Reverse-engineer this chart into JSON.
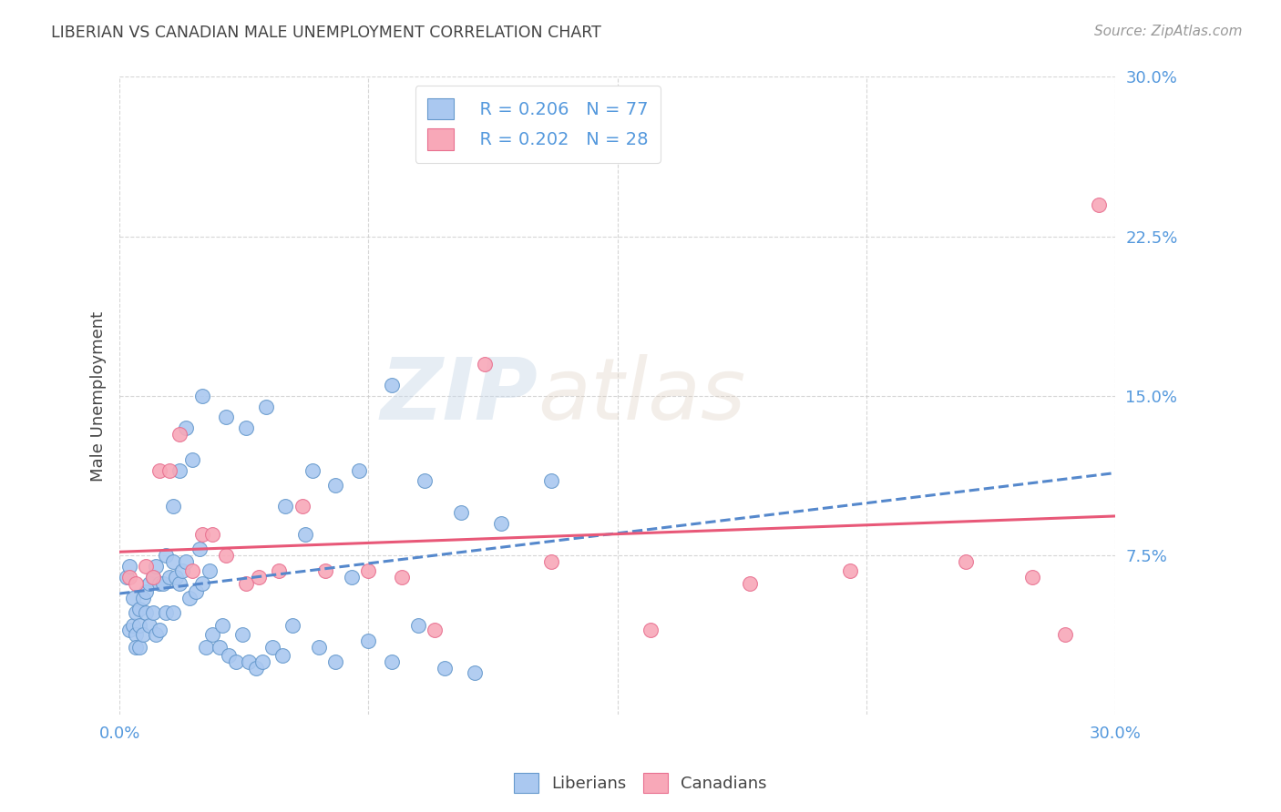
{
  "title": "LIBERIAN VS CANADIAN MALE UNEMPLOYMENT CORRELATION CHART",
  "source": "Source: ZipAtlas.com",
  "ylabel": "Male Unemployment",
  "xlim": [
    0.0,
    0.3
  ],
  "ylim": [
    0.0,
    0.3
  ],
  "watermark_zip": "ZIP",
  "watermark_atlas": "atlas",
  "legend_r1": "R = 0.206",
  "legend_n1": "N = 77",
  "legend_r2": "R = 0.202",
  "legend_n2": "N = 28",
  "liberian_color": "#aac8f0",
  "canadian_color": "#f8a8b8",
  "liberian_edge_color": "#6699cc",
  "canadian_edge_color": "#e87090",
  "liberian_line_color": "#5588cc",
  "canadian_line_color": "#e85878",
  "background_color": "#ffffff",
  "grid_color": "#cccccc",
  "title_color": "#444444",
  "axis_tick_color": "#5599dd",
  "liberian_x": [
    0.002,
    0.003,
    0.003,
    0.004,
    0.004,
    0.005,
    0.005,
    0.005,
    0.006,
    0.006,
    0.006,
    0.007,
    0.007,
    0.008,
    0.008,
    0.009,
    0.009,
    0.01,
    0.01,
    0.011,
    0.011,
    0.012,
    0.012,
    0.013,
    0.014,
    0.014,
    0.015,
    0.016,
    0.016,
    0.017,
    0.018,
    0.018,
    0.019,
    0.02,
    0.021,
    0.022,
    0.023,
    0.024,
    0.025,
    0.026,
    0.027,
    0.028,
    0.03,
    0.031,
    0.033,
    0.035,
    0.037,
    0.039,
    0.041,
    0.043,
    0.046,
    0.049,
    0.052,
    0.056,
    0.06,
    0.065,
    0.07,
    0.075,
    0.082,
    0.09,
    0.098,
    0.107,
    0.016,
    0.02,
    0.025,
    0.032,
    0.038,
    0.044,
    0.05,
    0.058,
    0.065,
    0.072,
    0.082,
    0.092,
    0.103,
    0.115,
    0.13
  ],
  "liberian_y": [
    0.065,
    0.07,
    0.04,
    0.055,
    0.042,
    0.048,
    0.038,
    0.032,
    0.05,
    0.042,
    0.032,
    0.055,
    0.038,
    0.058,
    0.048,
    0.062,
    0.042,
    0.065,
    0.048,
    0.07,
    0.038,
    0.062,
    0.04,
    0.062,
    0.075,
    0.048,
    0.065,
    0.072,
    0.048,
    0.065,
    0.115,
    0.062,
    0.068,
    0.072,
    0.055,
    0.12,
    0.058,
    0.078,
    0.062,
    0.032,
    0.068,
    0.038,
    0.032,
    0.042,
    0.028,
    0.025,
    0.038,
    0.025,
    0.022,
    0.025,
    0.032,
    0.028,
    0.042,
    0.085,
    0.032,
    0.025,
    0.065,
    0.035,
    0.025,
    0.042,
    0.022,
    0.02,
    0.098,
    0.135,
    0.15,
    0.14,
    0.135,
    0.145,
    0.098,
    0.115,
    0.108,
    0.115,
    0.155,
    0.11,
    0.095,
    0.09,
    0.11
  ],
  "canadian_x": [
    0.003,
    0.005,
    0.008,
    0.01,
    0.012,
    0.015,
    0.018,
    0.022,
    0.025,
    0.028,
    0.032,
    0.038,
    0.042,
    0.048,
    0.055,
    0.062,
    0.075,
    0.085,
    0.095,
    0.11,
    0.13,
    0.16,
    0.19,
    0.22,
    0.255,
    0.275,
    0.285,
    0.295
  ],
  "canadian_y": [
    0.065,
    0.062,
    0.07,
    0.065,
    0.115,
    0.115,
    0.132,
    0.068,
    0.085,
    0.085,
    0.075,
    0.062,
    0.065,
    0.068,
    0.098,
    0.068,
    0.068,
    0.065,
    0.04,
    0.165,
    0.072,
    0.04,
    0.062,
    0.068,
    0.072,
    0.065,
    0.038,
    0.24
  ]
}
